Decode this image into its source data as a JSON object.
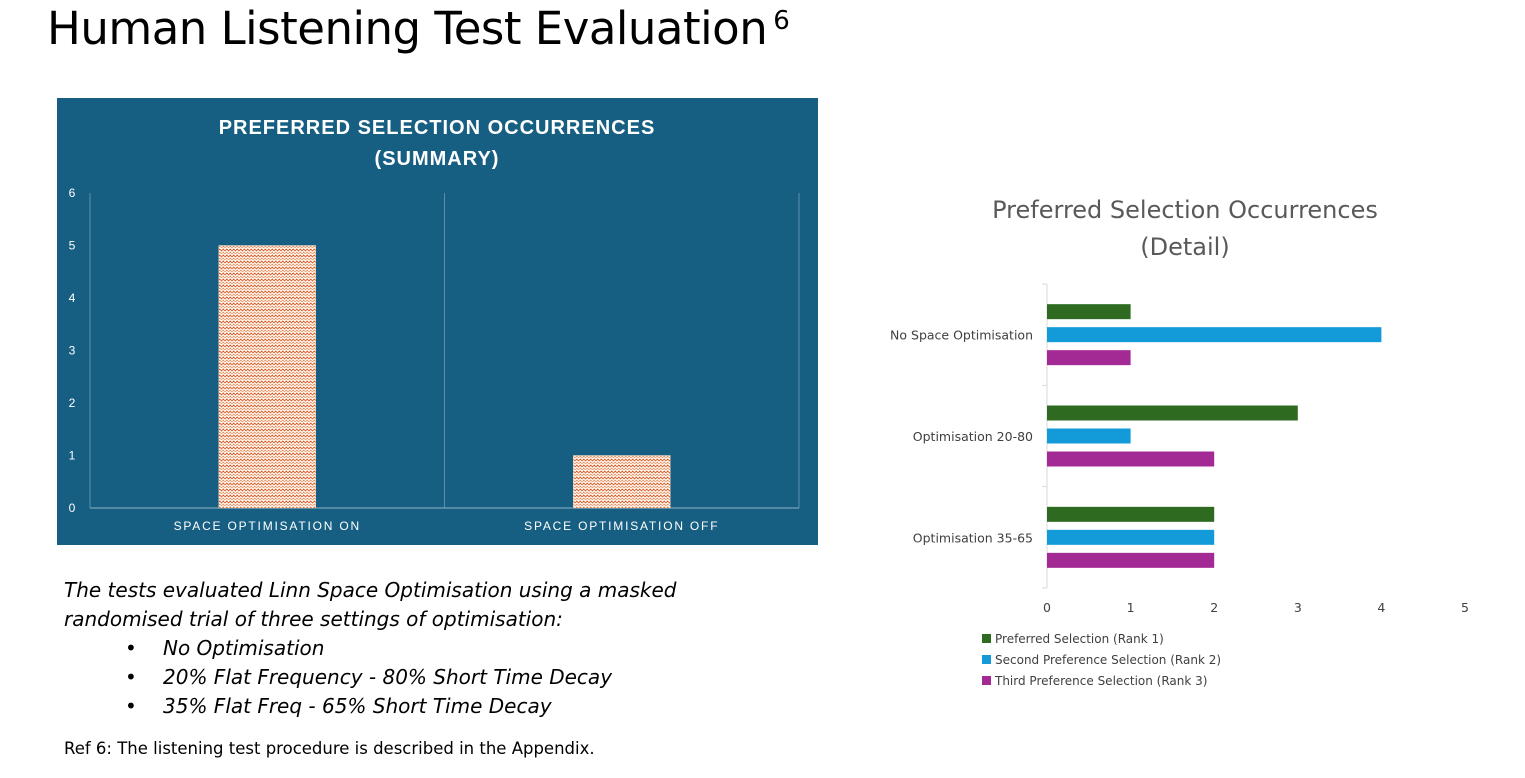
{
  "page": {
    "title": "Human Listening Test Evaluation",
    "title_ref": "6",
    "description": "The tests evaluated Linn Space Optimisation using a masked randomised trial of three settings of optimisation:",
    "bullets": [
      "No Optimisation",
      "20% Flat Frequency - 80% Short Time Decay",
      "35% Flat Freq - 65% Short Time Decay"
    ],
    "reference": "Ref 6: The listening test procedure is described in the Appendix."
  },
  "chart_data": [
    {
      "type": "bar",
      "title_lines": [
        "PREFERRED SELECTION OCCURRENCES",
        "(SUMMARY)"
      ],
      "categories": [
        "SPACE OPTIMISATION ON",
        "SPACE OPTIMISATION OFF"
      ],
      "values": [
        5,
        1
      ],
      "ylim": [
        0,
        6
      ],
      "yticks": [
        0,
        1,
        2,
        3,
        4,
        5,
        6
      ],
      "grid": false,
      "legend": "none",
      "background": "#175f82",
      "bar_fill": "#fff7ef",
      "bar_pattern": "#d9541e"
    },
    {
      "type": "bar",
      "orientation": "horizontal",
      "title_lines": [
        "Preferred Selection Occurrences",
        "(Detail)"
      ],
      "categories": [
        "No Space Optimisation",
        "Optimisation 20-80",
        "Optimisation 35-65"
      ],
      "series": [
        {
          "name": "Preferred Selection (Rank 1)",
          "color": "#2e6b21",
          "values": [
            1,
            3,
            2
          ]
        },
        {
          "name": "Second Preference Selection (Rank 2)",
          "color": "#139bd9",
          "values": [
            4,
            1,
            2
          ]
        },
        {
          "name": "Third Preference Selection (Rank 3)",
          "color": "#a32a94",
          "values": [
            1,
            2,
            2
          ]
        }
      ],
      "xlim": [
        0,
        5
      ],
      "xticks": [
        0,
        1,
        2,
        3,
        4,
        5
      ],
      "grid": false,
      "legend": "bottom-left"
    }
  ]
}
